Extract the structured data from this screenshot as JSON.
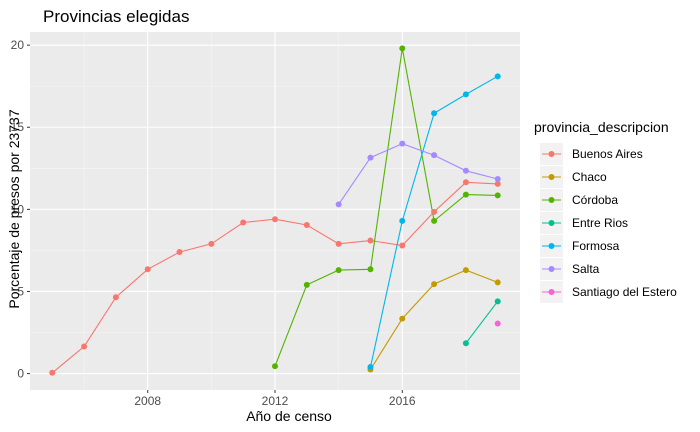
{
  "chart_data": {
    "type": "line",
    "title": "Provincias elegidas",
    "xlabel": "Año de censo",
    "ylabel": "Porcentaje de presos por 23737",
    "xlim": [
      2004.3,
      2019.7
    ],
    "ylim": [
      -1.0,
      20.8
    ],
    "x_ticks": [
      2008,
      2012,
      2016
    ],
    "y_ticks": [
      0,
      5,
      10,
      15,
      20
    ],
    "grid": true,
    "legend": {
      "title": "provincia_descripcion",
      "position": "right"
    },
    "series": [
      {
        "name": "Buenos Aires",
        "color": "#F8766D",
        "x": [
          2005,
          2006,
          2007,
          2008,
          2009,
          2010,
          2011,
          2012,
          2013,
          2014,
          2015,
          2016,
          2017,
          2018,
          2019
        ],
        "y": [
          0.05,
          1.65,
          4.65,
          6.35,
          7.4,
          7.9,
          9.2,
          9.4,
          9.05,
          7.9,
          8.1,
          7.8,
          9.85,
          11.65,
          11.55
        ]
      },
      {
        "name": "Chaco",
        "color": "#C49A00",
        "x": [
          2015,
          2016,
          2017,
          2018,
          2019
        ],
        "y": [
          0.25,
          3.35,
          5.45,
          6.3,
          5.55
        ]
      },
      {
        "name": "Córdoba",
        "color": "#53B400",
        "x": [
          2012,
          2013,
          2014,
          2015,
          2016,
          2017,
          2018,
          2019
        ],
        "y": [
          0.45,
          5.4,
          6.3,
          6.35,
          19.8,
          9.3,
          10.9,
          10.85
        ]
      },
      {
        "name": "Entre Rios",
        "color": "#00C094",
        "x": [
          2018,
          2019
        ],
        "y": [
          1.85,
          4.4
        ]
      },
      {
        "name": "Formosa",
        "color": "#00B6EB",
        "x": [
          2015,
          2016,
          2017,
          2018,
          2019
        ],
        "y": [
          0.4,
          9.3,
          15.85,
          17.0,
          18.1
        ]
      },
      {
        "name": "Salta",
        "color": "#A58AFF",
        "x": [
          2014,
          2015,
          2016,
          2017,
          2018,
          2019
        ],
        "y": [
          10.3,
          13.15,
          14.0,
          13.3,
          12.35,
          11.85
        ]
      },
      {
        "name": "Santiago del Estero",
        "color": "#FB61D7",
        "x": [
          2019
        ],
        "y": [
          3.05
        ]
      }
    ]
  }
}
